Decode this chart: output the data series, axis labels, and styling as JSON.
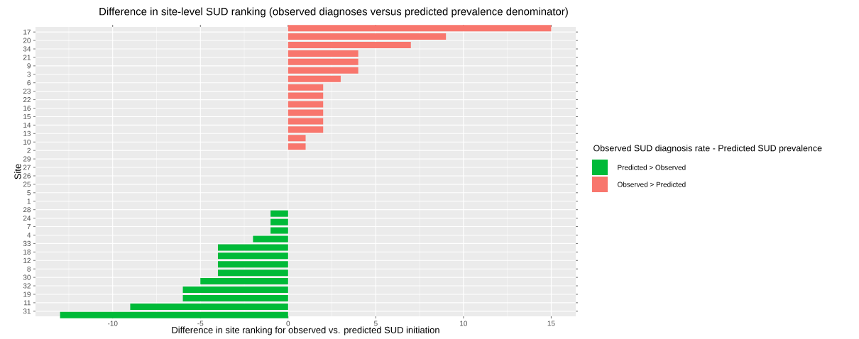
{
  "chart_data": {
    "type": "bar",
    "orientation": "horizontal",
    "title": "Difference in site-level SUD ranking (observed diagnoses versus predicted prevalence denominator)",
    "xlabel": "Difference in site ranking for observed vs. predicted SUD initiation",
    "ylabel": "Site",
    "legend_title": "Observed SUD diagnosis rate - Predicted SUD prevalence",
    "categories": [
      "17",
      "20",
      "34",
      "21",
      "9",
      "3",
      "6",
      "23",
      "22",
      "16",
      "15",
      "14",
      "13",
      "10",
      "2",
      "29",
      "27",
      "26",
      "25",
      "5",
      "1",
      "28",
      "24",
      "7",
      "4",
      "33",
      "18",
      "12",
      "8",
      "30",
      "32",
      "19",
      "11",
      "31"
    ],
    "series": [
      {
        "name": "Predicted > Observed",
        "color": "#00ba38",
        "values": [
          null,
          null,
          null,
          null,
          null,
          null,
          null,
          null,
          null,
          null,
          null,
          null,
          null,
          null,
          null,
          null,
          null,
          null,
          null,
          null,
          null,
          -1,
          -1,
          -1,
          -2,
          -4,
          -4,
          -4,
          -4,
          -5,
          -6,
          -6,
          -9,
          -13
        ]
      },
      {
        "name": "Observed > Predicted",
        "color": "#f8766d",
        "values": [
          15,
          9,
          7,
          4,
          4,
          4,
          3,
          2,
          2,
          2,
          2,
          2,
          2,
          1,
          1,
          0,
          0,
          0,
          0,
          0,
          0,
          null,
          null,
          null,
          null,
          null,
          null,
          null,
          null,
          null,
          null,
          null,
          null,
          null
        ]
      }
    ],
    "xlim": [
      -14.4,
      16.4
    ],
    "xticks": [
      -10,
      -5,
      0,
      5,
      10,
      15
    ],
    "grid": true,
    "legend": "right"
  }
}
